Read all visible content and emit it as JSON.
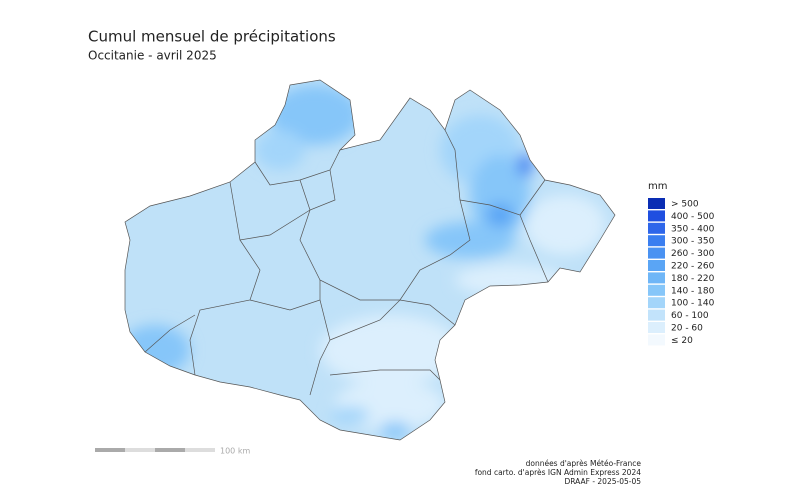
{
  "header": {
    "title": "Cumul mensuel de précipitations",
    "subtitle": "Occitanie - avril 2025"
  },
  "legend": {
    "unit": "mm",
    "classes": [
      {
        "label": "> 500",
        "color": "#0a2db4"
      },
      {
        "label": "400 - 500",
        "color": "#1f4fe0"
      },
      {
        "label": "350 - 400",
        "color": "#2e66ea"
      },
      {
        "label": "300 - 350",
        "color": "#3a7ef0"
      },
      {
        "label": "260 - 300",
        "color": "#4a92f2"
      },
      {
        "label": "220 - 260",
        "color": "#5aa5f5"
      },
      {
        "label": "180 - 220",
        "color": "#6fb6f7"
      },
      {
        "label": "140 - 180",
        "color": "#86c6f9"
      },
      {
        "label": "100 - 140",
        "color": "#a3d5fa"
      },
      {
        "label": "60 - 100",
        "color": "#c2e3fb"
      },
      {
        "label": "20 - 60",
        "color": "#dceffd"
      },
      {
        "label": "≤ 20",
        "color": "#f3f9fe"
      }
    ]
  },
  "scale_bar": {
    "label": "100 km"
  },
  "credits": [
    "données d'après Météo-France",
    "fond carto. d'après IGN Admin Express 2024",
    "DRAAF - 2025-05-05"
  ]
}
